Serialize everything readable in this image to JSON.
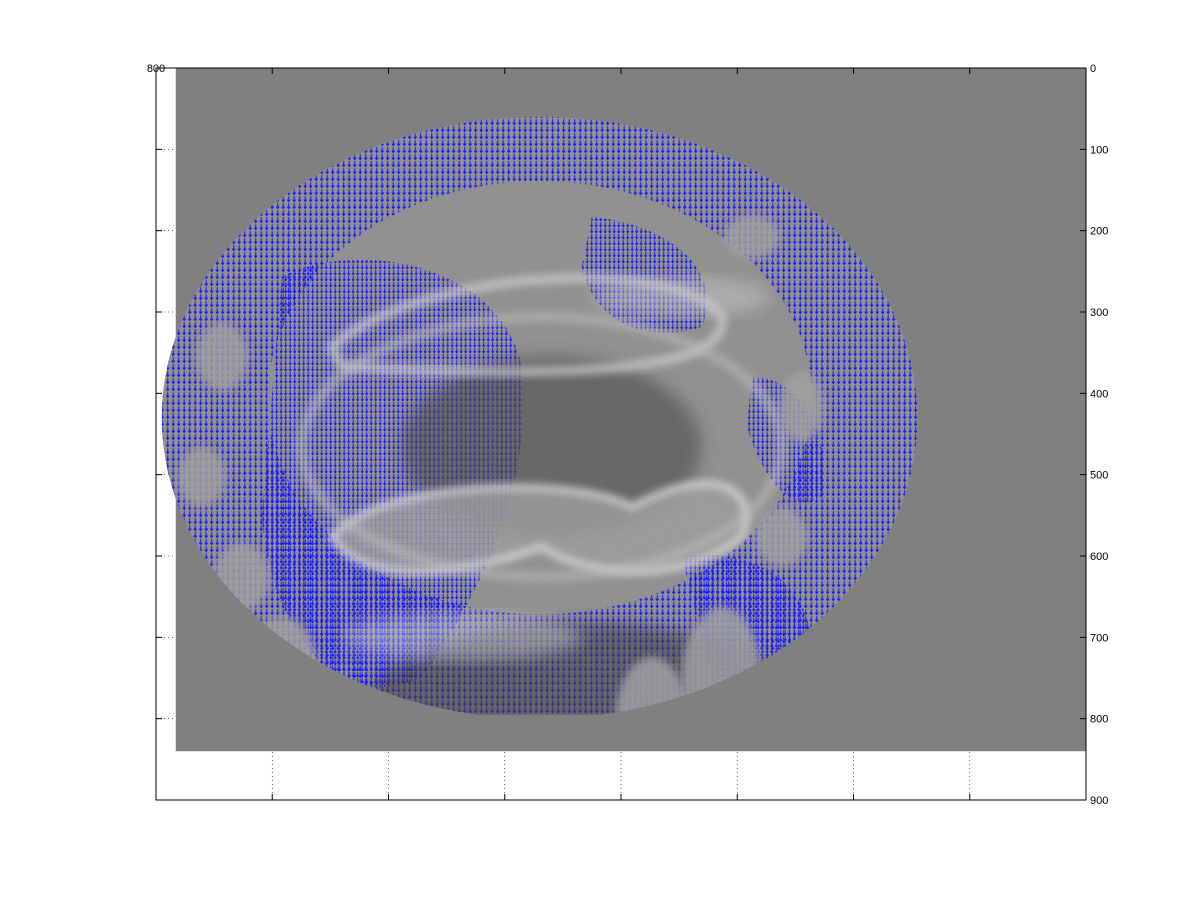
{
  "chart_data": {
    "type": "heatmap",
    "title": "",
    "xlabel": "",
    "ylabel": "",
    "grid": true,
    "grid_style": "dotted",
    "colormap": "gray",
    "overlay": "quiver",
    "overlay_color": "#0000ff",
    "image_background": "#808080",
    "x_range": [
      800,
      0
    ],
    "y_range": [
      0,
      900
    ],
    "x_tick_values": [
      800,
      700,
      600,
      500,
      400,
      300,
      200,
      100,
      0
    ],
    "x_tick_labels": [
      "800",
      "",
      "",
      "",
      "",
      "",
      "",
      "",
      ""
    ],
    "y_tick_values": [
      0,
      100,
      200,
      300,
      400,
      500,
      600,
      700,
      800,
      900
    ],
    "y_tick_labels": [
      "0",
      "100",
      "200",
      "300",
      "400",
      "500",
      "600",
      "700",
      "800",
      "900"
    ],
    "image_extent": {
      "x": [
        783,
        0
      ],
      "y": [
        0,
        840
      ]
    },
    "segmented_region": {
      "center": [
        470,
        430
      ],
      "half_width": [
        325,
        370
      ],
      "flat_bottom_y": 795
    }
  }
}
